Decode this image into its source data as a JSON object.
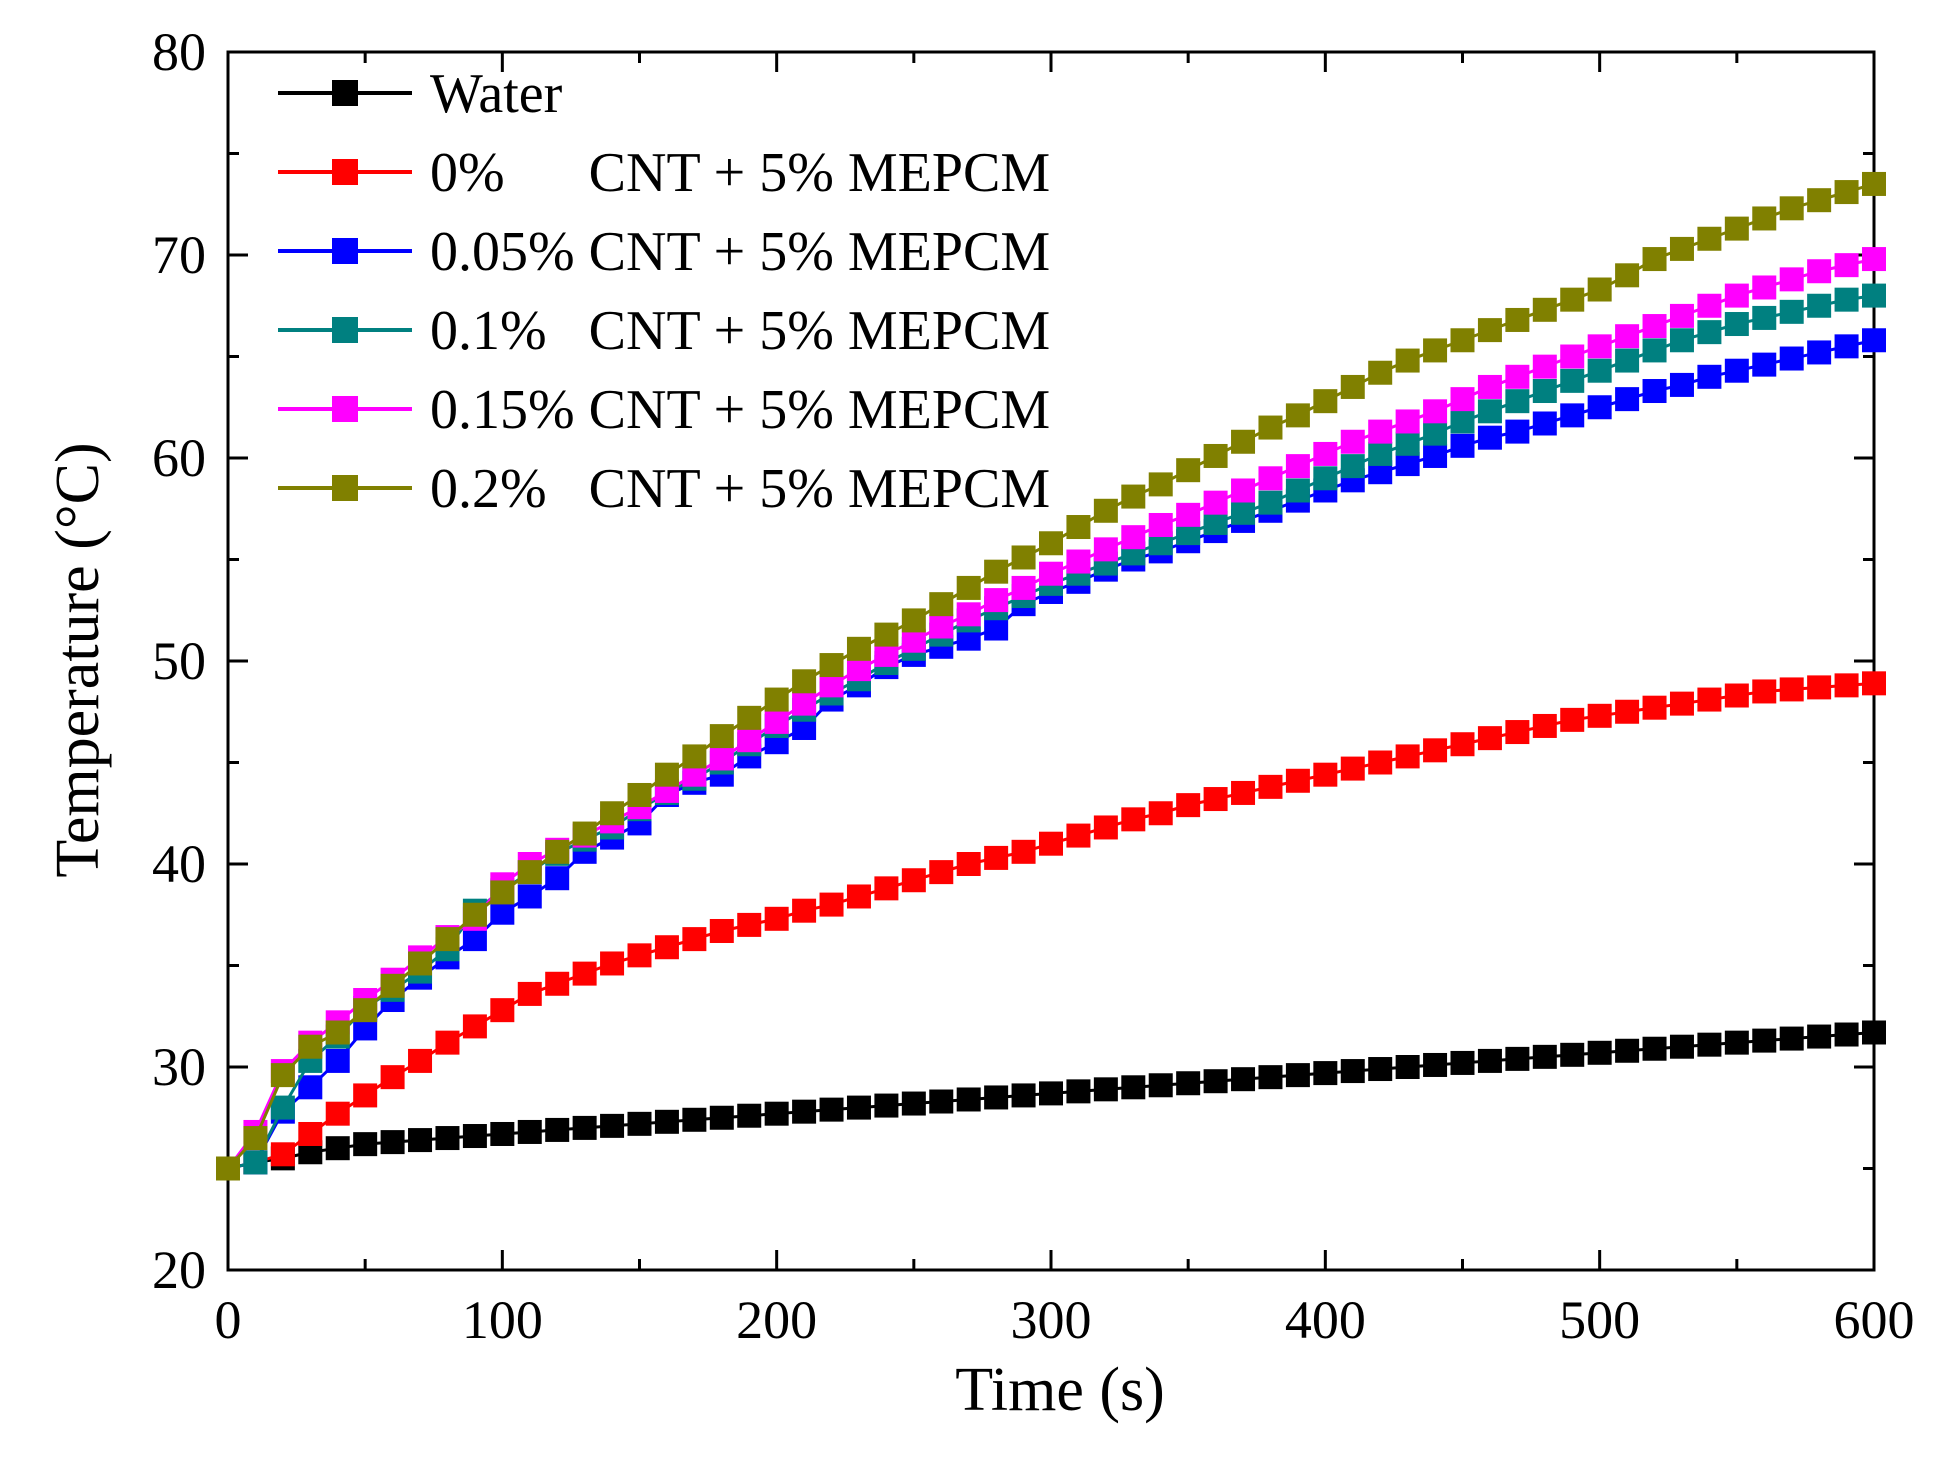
{
  "chart_data": {
    "type": "line",
    "title": "",
    "xlabel": "Time (s)",
    "ylabel": "Temperature (°C)",
    "xlim": [
      0,
      600
    ],
    "ylim": [
      20,
      80
    ],
    "xticks": [
      0,
      100,
      200,
      300,
      400,
      500,
      600
    ],
    "yticks": [
      20,
      30,
      40,
      50,
      60,
      70,
      80
    ],
    "x_minor_step": 50,
    "y_minor_step": 5,
    "grid": false,
    "legend_position": "top-left",
    "marker": "square",
    "x": [
      0,
      10,
      20,
      30,
      40,
      50,
      60,
      70,
      80,
      90,
      100,
      110,
      120,
      130,
      140,
      150,
      160,
      170,
      180,
      190,
      200,
      210,
      220,
      230,
      240,
      250,
      260,
      270,
      280,
      290,
      300,
      310,
      320,
      330,
      340,
      350,
      360,
      370,
      380,
      390,
      400,
      410,
      420,
      430,
      440,
      450,
      460,
      470,
      480,
      490,
      500,
      510,
      520,
      530,
      540,
      550,
      560,
      570,
      580,
      590,
      600
    ],
    "series": [
      {
        "name": "Water",
        "color": "#000000",
        "values": [
          25.0,
          25.3,
          25.5,
          25.8,
          26.0,
          26.2,
          26.3,
          26.4,
          26.5,
          26.6,
          26.7,
          26.8,
          26.9,
          27.0,
          27.1,
          27.2,
          27.3,
          27.4,
          27.5,
          27.6,
          27.7,
          27.8,
          27.9,
          28.0,
          28.1,
          28.2,
          28.3,
          28.4,
          28.5,
          28.6,
          28.7,
          28.8,
          28.9,
          29.0,
          29.1,
          29.2,
          29.3,
          29.4,
          29.5,
          29.6,
          29.7,
          29.8,
          29.9,
          30.0,
          30.1,
          30.2,
          30.3,
          30.4,
          30.5,
          30.6,
          30.7,
          30.8,
          30.9,
          31.0,
          31.1,
          31.2,
          31.3,
          31.4,
          31.5,
          31.6,
          31.7
        ]
      },
      {
        "name": "0%      CNT + 5% MEPCM",
        "color": "#ff0000",
        "values": [
          25.0,
          25.3,
          25.7,
          26.7,
          27.7,
          28.6,
          29.5,
          30.3,
          31.2,
          32.0,
          32.8,
          33.6,
          34.1,
          34.6,
          35.1,
          35.5,
          35.9,
          36.3,
          36.7,
          37.0,
          37.3,
          37.7,
          38.0,
          38.4,
          38.8,
          39.2,
          39.6,
          40.0,
          40.3,
          40.6,
          41.0,
          41.4,
          41.8,
          42.2,
          42.5,
          42.9,
          43.2,
          43.5,
          43.8,
          44.1,
          44.4,
          44.7,
          45.0,
          45.3,
          45.6,
          45.9,
          46.2,
          46.5,
          46.8,
          47.1,
          47.3,
          47.5,
          47.7,
          47.9,
          48.1,
          48.3,
          48.5,
          48.6,
          48.7,
          48.8,
          48.9
        ]
      },
      {
        "name": "0.05% CNT + 5% MEPCM",
        "color": "#0000ff",
        "values": [
          25.0,
          25.3,
          27.8,
          29.0,
          30.3,
          31.9,
          33.3,
          34.4,
          35.4,
          36.3,
          37.6,
          38.4,
          39.3,
          40.6,
          41.3,
          42.0,
          43.4,
          44.0,
          44.4,
          45.3,
          46.0,
          46.7,
          48.1,
          48.8,
          49.7,
          50.3,
          50.7,
          51.1,
          51.6,
          52.8,
          53.4,
          53.9,
          54.5,
          55.0,
          55.4,
          55.9,
          56.4,
          56.9,
          57.4,
          57.9,
          58.4,
          58.9,
          59.3,
          59.7,
          60.1,
          60.6,
          61.0,
          61.3,
          61.7,
          62.1,
          62.5,
          62.9,
          63.3,
          63.6,
          64.0,
          64.3,
          64.6,
          64.9,
          65.2,
          65.5,
          65.8
        ]
      },
      {
        "name": "0.1%   CNT + 5% MEPCM",
        "color": "#008080",
        "values": [
          25.0,
          25.3,
          28.0,
          30.3,
          31.5,
          32.9,
          33.8,
          34.7,
          35.8,
          37.7,
          38.7,
          39.6,
          40.5,
          41.2,
          41.8,
          42.7,
          43.5,
          44.2,
          45.0,
          45.9,
          46.8,
          47.6,
          48.4,
          49.1,
          49.9,
          50.6,
          51.3,
          52.0,
          52.6,
          53.2,
          53.8,
          54.3,
          54.8,
          55.3,
          55.8,
          56.3,
          56.8,
          57.3,
          57.8,
          58.4,
          59.0,
          59.6,
          60.2,
          60.7,
          61.2,
          61.8,
          62.3,
          62.8,
          63.3,
          63.8,
          64.3,
          64.8,
          65.3,
          65.8,
          66.2,
          66.6,
          66.9,
          67.2,
          67.5,
          67.8,
          68.0
        ]
      },
      {
        "name": "0.15% CNT + 5% MEPCM",
        "color": "#ff00ff",
        "values": [
          25.0,
          26.8,
          29.8,
          31.2,
          32.2,
          33.3,
          34.3,
          35.4,
          36.4,
          37.3,
          39.0,
          40.0,
          40.7,
          41.4,
          42.1,
          42.8,
          43.6,
          44.4,
          45.2,
          46.1,
          47.0,
          47.9,
          48.8,
          49.6,
          50.3,
          51.0,
          51.7,
          52.3,
          53.0,
          53.6,
          54.3,
          54.9,
          55.5,
          56.1,
          56.7,
          57.2,
          57.8,
          58.4,
          59.0,
          59.6,
          60.2,
          60.8,
          61.3,
          61.8,
          62.3,
          62.9,
          63.5,
          64.0,
          64.5,
          65.0,
          65.5,
          66.0,
          66.5,
          67.0,
          67.5,
          68.0,
          68.4,
          68.8,
          69.2,
          69.5,
          69.8
        ]
      },
      {
        "name": "0.2%   CNT + 5% MEPCM",
        "color": "#808000",
        "values": [
          25.0,
          26.5,
          29.6,
          31.0,
          31.7,
          32.8,
          34.0,
          35.1,
          36.3,
          37.5,
          38.6,
          39.6,
          40.6,
          41.5,
          42.5,
          43.4,
          44.4,
          45.3,
          46.3,
          47.2,
          48.1,
          49.0,
          49.8,
          50.6,
          51.3,
          52.0,
          52.8,
          53.6,
          54.4,
          55.1,
          55.8,
          56.6,
          57.4,
          58.1,
          58.7,
          59.4,
          60.1,
          60.8,
          61.5,
          62.1,
          62.8,
          63.5,
          64.2,
          64.8,
          65.3,
          65.8,
          66.3,
          66.8,
          67.3,
          67.8,
          68.3,
          69.0,
          69.8,
          70.3,
          70.8,
          71.3,
          71.8,
          72.3,
          72.7,
          73.1,
          73.5
        ]
      }
    ]
  }
}
